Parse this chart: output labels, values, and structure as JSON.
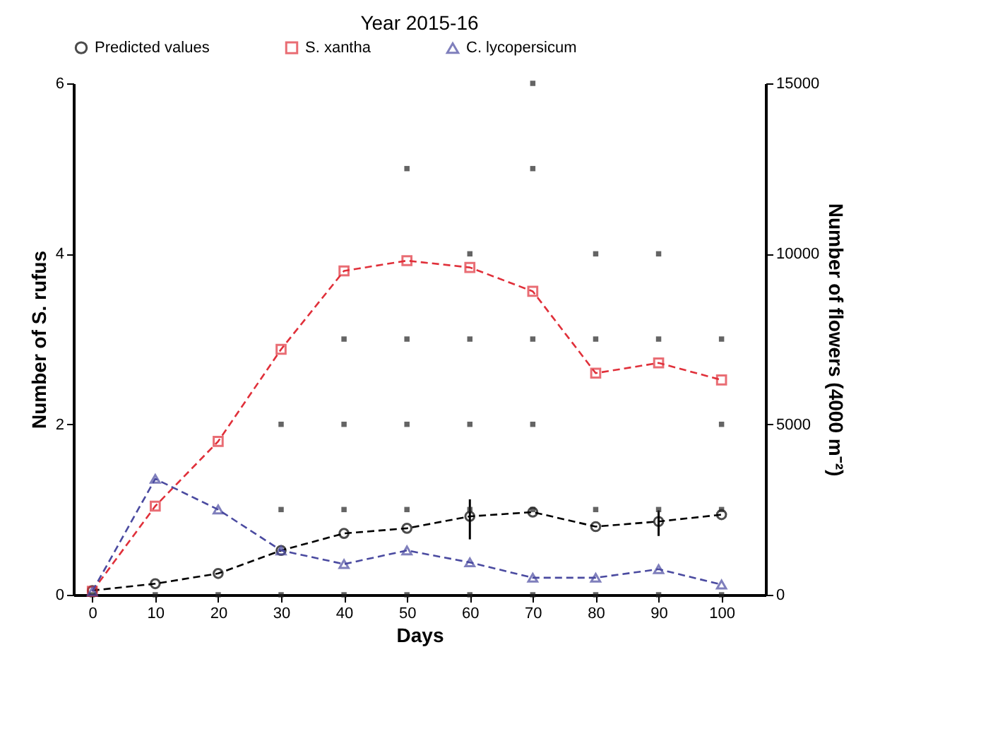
{
  "chart_data": {
    "type": "line",
    "title": "Year 2015-16",
    "xlabel": "Days",
    "ylabel": "Number of S. rufus",
    "y2label": "Number of flowers (4000 m⁻²)",
    "x": [
      0,
      10,
      20,
      30,
      40,
      50,
      60,
      70,
      80,
      90,
      100
    ],
    "series": [
      {
        "name": "Predicted values",
        "color": "#000000",
        "marker": "circle",
        "values": [
          0.05,
          0.13,
          0.25,
          0.52,
          0.72,
          0.78,
          0.92,
          0.97,
          0.8,
          0.86,
          0.94
        ],
        "errors": [
          null,
          null,
          null,
          null,
          null,
          null,
          [
            0.65,
            1.12
          ],
          null,
          null,
          [
            0.69,
            0.99
          ],
          null
        ]
      },
      {
        "name": "S. xantha",
        "color": "#e0303a",
        "marker": "square",
        "axis": "y2",
        "values": [
          100,
          2600,
          4500,
          7200,
          9500,
          9800,
          9600,
          8900,
          6500,
          6800,
          6300
        ]
      },
      {
        "name": "C. lycopersicum",
        "color": "#4a4aa0",
        "marker": "triangle",
        "axis": "y2",
        "values": [
          100,
          3400,
          2500,
          1300,
          900,
          1300,
          950,
          500,
          500,
          750,
          300
        ]
      },
      {
        "type": "scatter",
        "color": "#222222",
        "marker": "square",
        "x": [
          0,
          10,
          20,
          30,
          30,
          30,
          40,
          40,
          40,
          40,
          50,
          50,
          50,
          50,
          50,
          60,
          60,
          60,
          60,
          60,
          70,
          70,
          70,
          70,
          70,
          70,
          80,
          80,
          80,
          80,
          90,
          90,
          90,
          90,
          100,
          100,
          100,
          100
        ],
        "values": [
          0,
          0,
          0,
          2,
          1,
          0,
          3,
          2,
          1,
          0,
          5,
          3,
          2,
          1,
          0,
          4,
          3,
          2,
          1,
          0,
          6,
          5,
          3,
          2,
          1,
          0,
          4,
          3,
          1,
          0,
          4,
          3,
          1,
          0,
          3,
          2,
          1,
          0
        ]
      }
    ],
    "xlim": [
      -3,
      107
    ],
    "xticks": [
      0,
      10,
      20,
      30,
      40,
      50,
      60,
      70,
      80,
      90,
      100
    ],
    "ylim": [
      0,
      6
    ],
    "yticks": [
      0,
      2,
      4,
      6
    ],
    "y2lim": [
      0,
      15000
    ],
    "y2ticks": [
      0,
      5000,
      10000,
      15000
    ],
    "grid": false,
    "legend": "top",
    "line_style": "dashed"
  }
}
